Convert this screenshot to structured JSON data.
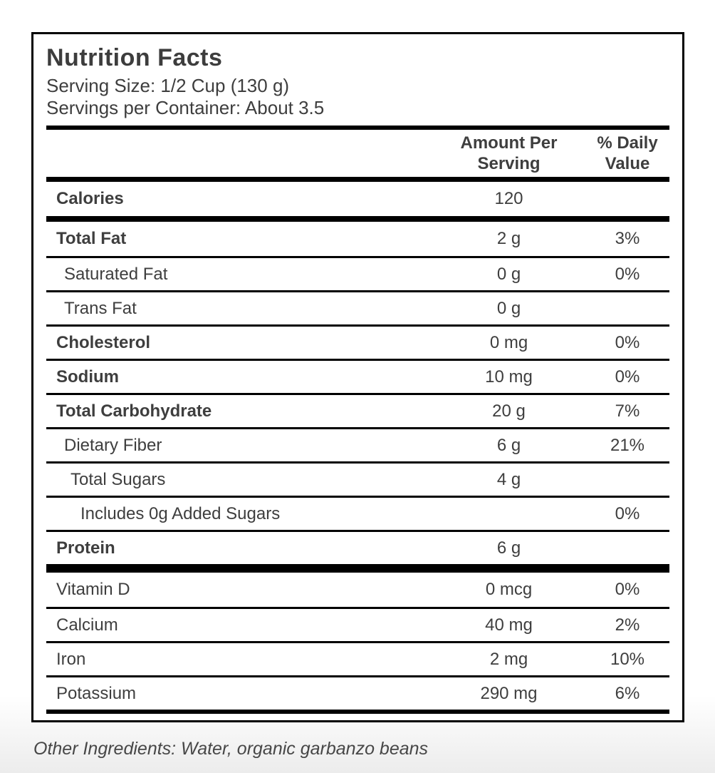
{
  "panel": {
    "title": "Nutrition Facts",
    "serving_size": "Serving Size: 1/2 Cup (130 g)",
    "servings_per_container": "Servings per Container: About 3.5",
    "columns": {
      "amount": "Amount Per Serving",
      "daily_value": "% Daily Value"
    },
    "rows": [
      {
        "name": "Calories",
        "amount": "120",
        "daily_value": "",
        "bold": true,
        "indent": 0,
        "bar_after": "medium"
      },
      {
        "name": "Total Fat",
        "amount": "2 g",
        "daily_value": "3%",
        "bold": true,
        "indent": 0
      },
      {
        "name": "Saturated Fat",
        "amount": "0 g",
        "daily_value": "0%",
        "bold": false,
        "indent": 1
      },
      {
        "name": "Trans Fat",
        "amount": "0 g",
        "daily_value": "",
        "bold": false,
        "indent": 1
      },
      {
        "name": "Cholesterol",
        "amount": "0 mg",
        "daily_value": "0%",
        "bold": true,
        "indent": 0
      },
      {
        "name": "Sodium",
        "amount": "10 mg",
        "daily_value": "0%",
        "bold": true,
        "indent": 0
      },
      {
        "name": "Total Carbohydrate",
        "amount": "20 g",
        "daily_value": "7%",
        "bold": true,
        "indent": 0
      },
      {
        "name": "Dietary Fiber",
        "amount": "6 g",
        "daily_value": "21%",
        "bold": false,
        "indent": 1
      },
      {
        "name": "Total Sugars",
        "amount": "4 g",
        "daily_value": "",
        "bold": false,
        "indent": 2
      },
      {
        "name": "Includes 0g Added Sugars",
        "amount": "",
        "daily_value": "0%",
        "bold": false,
        "indent": 3
      },
      {
        "name": "Protein",
        "amount": "6 g",
        "daily_value": "",
        "bold": true,
        "indent": 0,
        "bar_after": "heavy"
      },
      {
        "name": "Vitamin D",
        "amount": "0 mcg",
        "daily_value": "0%",
        "bold": false,
        "indent": 0
      },
      {
        "name": "Calcium",
        "amount": "40 mg",
        "daily_value": "2%",
        "bold": false,
        "indent": 0
      },
      {
        "name": "Iron",
        "amount": "2 mg",
        "daily_value": "10%",
        "bold": false,
        "indent": 0
      },
      {
        "name": "Potassium",
        "amount": "290 mg",
        "daily_value": "6%",
        "bold": false,
        "indent": 0
      }
    ],
    "footer": "Other Ingredients: Water, organic garbanzo beans"
  },
  "colors": {
    "text": "#3e3e3e",
    "rule": "#000000",
    "panel_background": "#ffffff",
    "page_fade": "#ececec"
  }
}
